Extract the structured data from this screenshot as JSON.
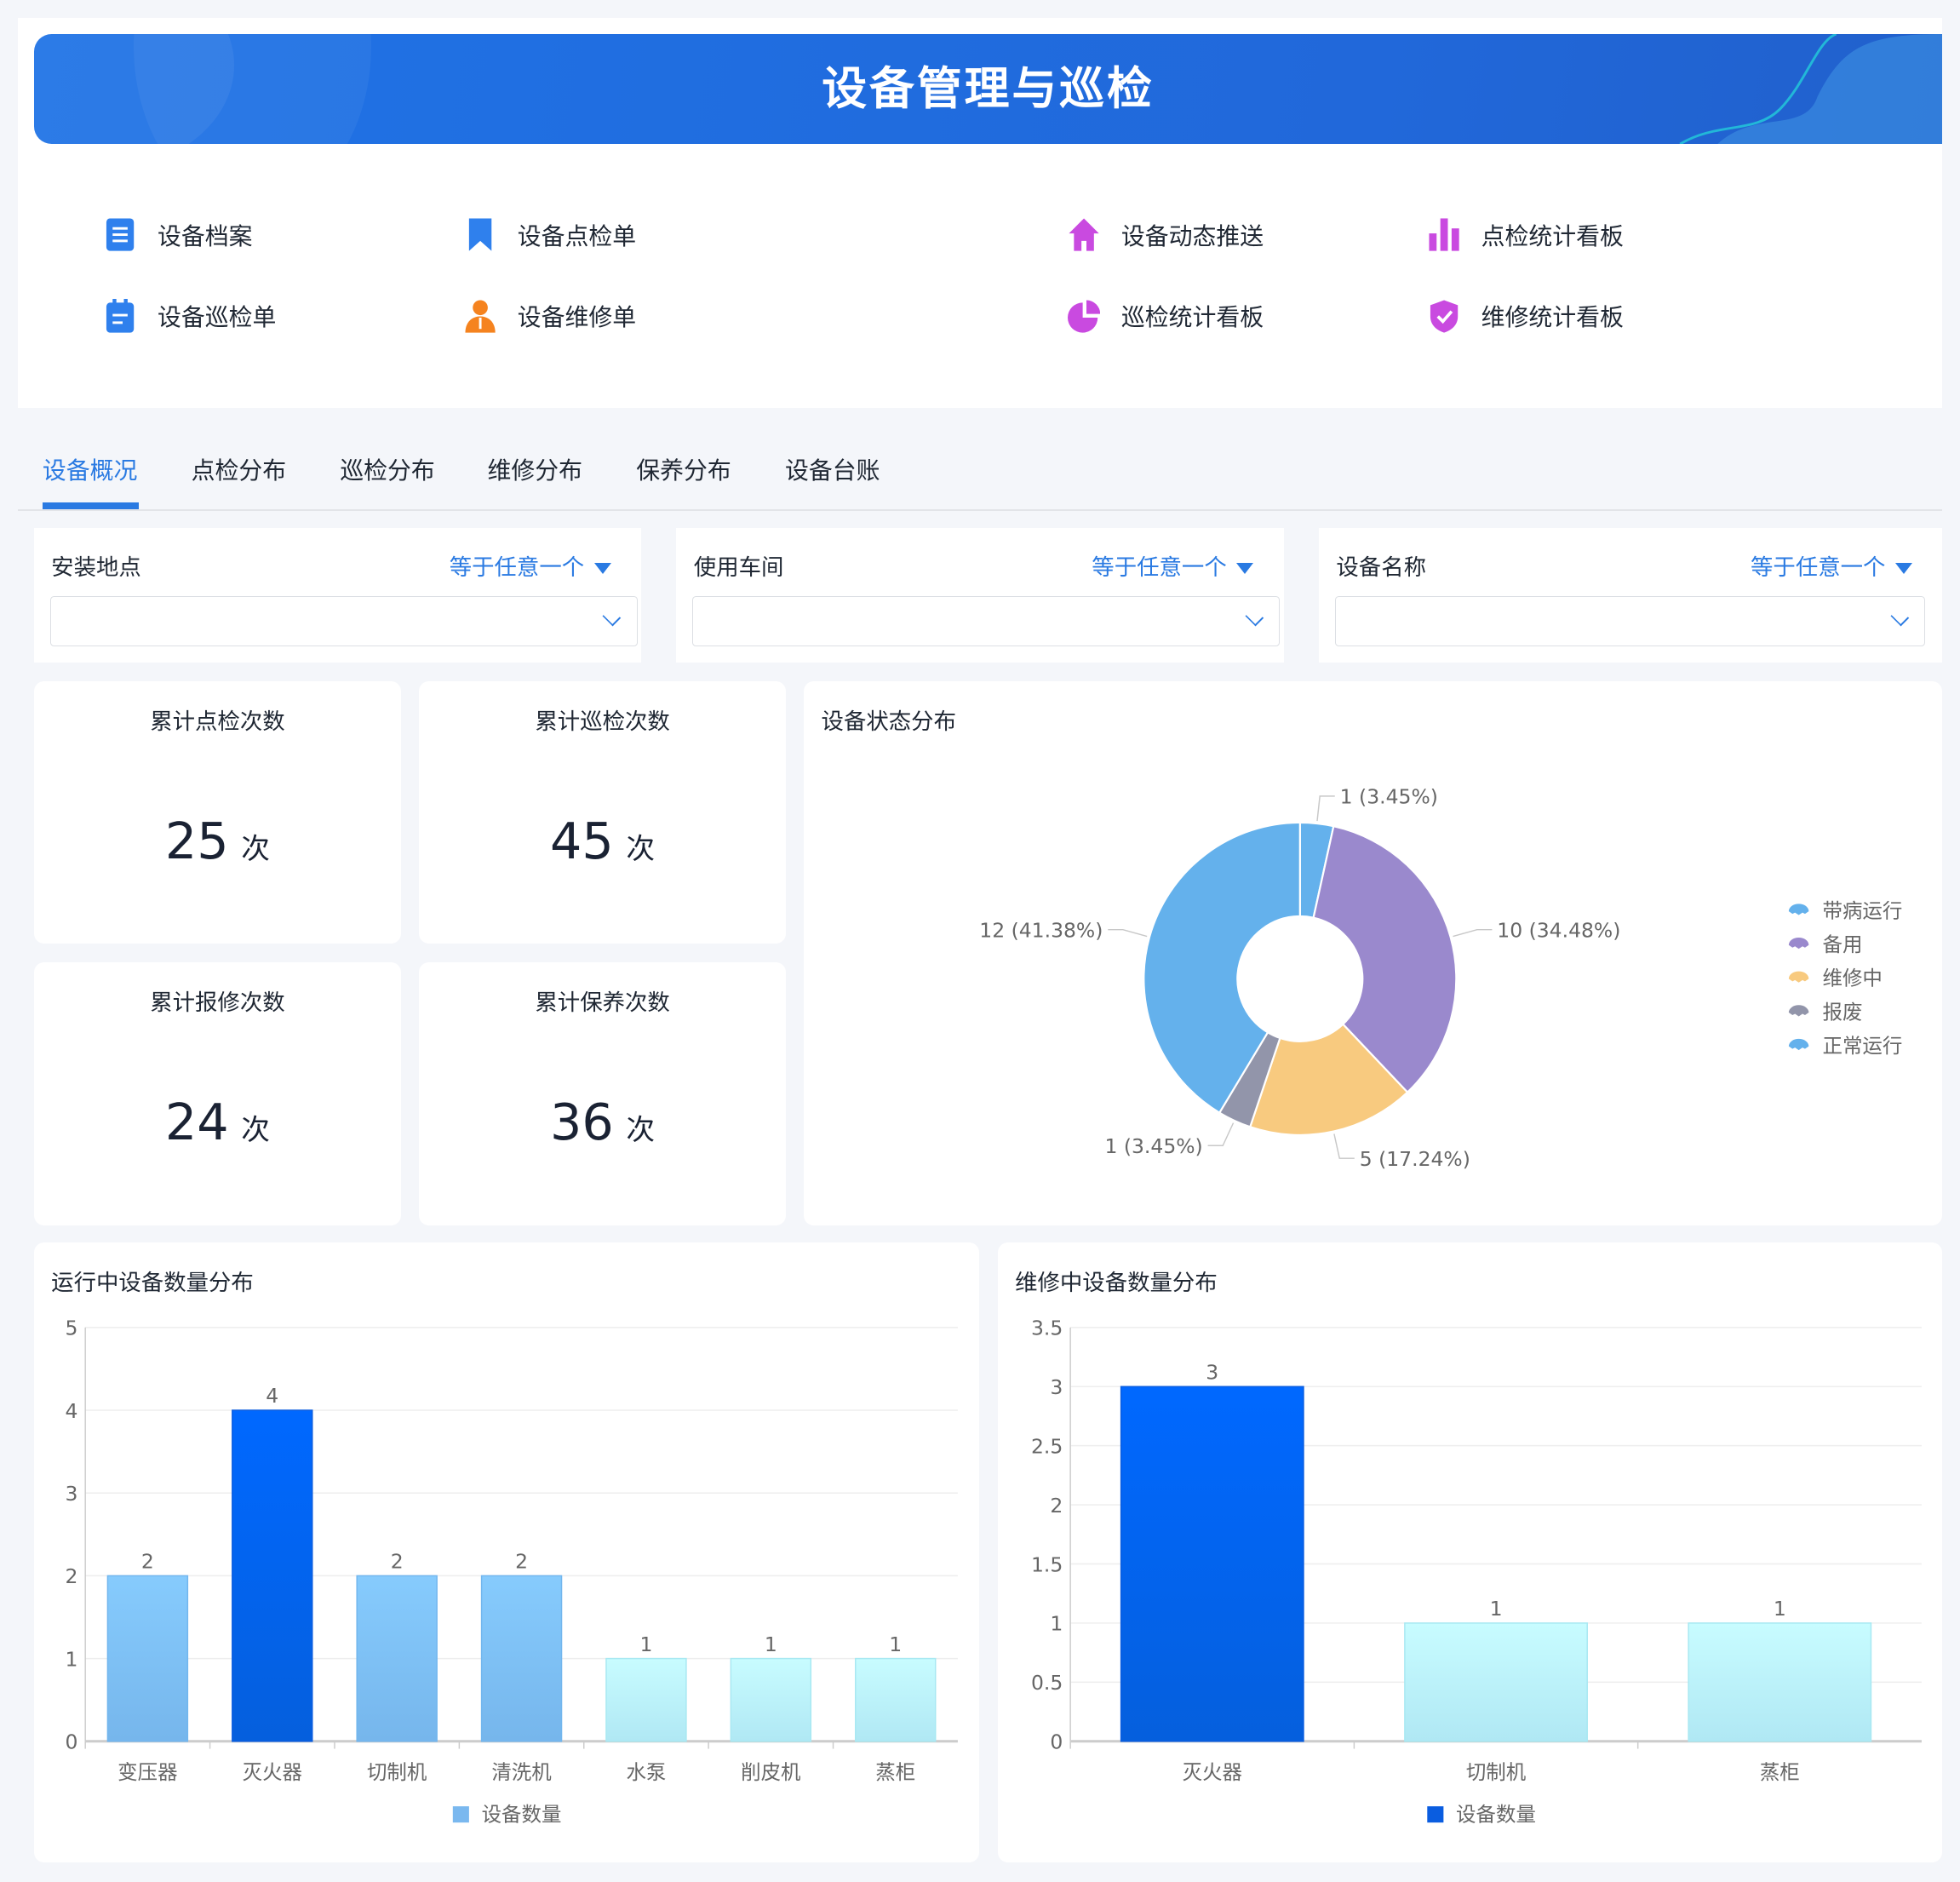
{
  "header": {
    "title": "设备管理与巡检"
  },
  "nav": [
    {
      "label": "设备档案",
      "icon": "document-icon",
      "color": "#2f80ed"
    },
    {
      "label": "设备点检单",
      "icon": "bookmark-icon",
      "color": "#2f80ed"
    },
    {
      "label": "设备动态推送",
      "icon": "home-icon",
      "color": "#c94ae0"
    },
    {
      "label": "点检统计看板",
      "icon": "bar-chart-icon",
      "color": "#c94ae0"
    },
    {
      "label": "设备巡检单",
      "icon": "clipboard-icon",
      "color": "#2f80ed"
    },
    {
      "label": "设备维修单",
      "icon": "user-icon",
      "color": "#f5831f"
    },
    {
      "label": "巡检统计看板",
      "icon": "pie-chart-icon",
      "color": "#c94ae0"
    },
    {
      "label": "维修统计看板",
      "icon": "shield-check-icon",
      "color": "#c94ae0"
    }
  ],
  "tabs": [
    {
      "label": "设备概况",
      "active": true
    },
    {
      "label": "点检分布"
    },
    {
      "label": "巡检分布"
    },
    {
      "label": "维修分布"
    },
    {
      "label": "保养分布"
    },
    {
      "label": "设备台账"
    }
  ],
  "filters": [
    {
      "label": "安装地点",
      "operator": "等于任意一个",
      "value": ""
    },
    {
      "label": "使用车间",
      "operator": "等于任意一个",
      "value": ""
    },
    {
      "label": "设备名称",
      "operator": "等于任意一个",
      "value": ""
    }
  ],
  "kpis": [
    {
      "title": "累计点检次数",
      "value": "25",
      "unit": "次"
    },
    {
      "title": "累计巡检次数",
      "value": "45",
      "unit": "次"
    },
    {
      "title": "累计报修次数",
      "value": "24",
      "unit": "次"
    },
    {
      "title": "累计保养次数",
      "value": "36",
      "unit": "次"
    }
  ],
  "accent": "#2a7ae2",
  "chart_data": [
    {
      "type": "pie",
      "title": "设备状态分布",
      "donut": true,
      "legend": "right",
      "slices": [
        {
          "name": "带病运行",
          "value": 1,
          "label": "1 (3.45%)",
          "color": "#64b1ec"
        },
        {
          "name": "备用",
          "value": 10,
          "label": "10 (34.48%)",
          "color": "#9a89cd"
        },
        {
          "name": "维修中",
          "value": 5,
          "label": "5 (17.24%)",
          "color": "#f8ca7f"
        },
        {
          "name": "报废",
          "value": 1,
          "label": "1 (3.45%)",
          "color": "#9295aa"
        },
        {
          "name": "正常运行",
          "value": 12,
          "label": "12 (41.38%)",
          "color": "#64b1ec"
        }
      ]
    },
    {
      "type": "bar",
      "title": "运行中设备数量分布",
      "categories": [
        "变压器",
        "灭火器",
        "切制机",
        "清洗机",
        "水泵",
        "削皮机",
        "蒸柜"
      ],
      "series": [
        {
          "name": "设备数量",
          "values": [
            2,
            4,
            2,
            2,
            1,
            1,
            1
          ],
          "color": "#7ab8ef"
        }
      ],
      "yticks": [
        "0",
        "1",
        "2",
        "3",
        "4",
        "5"
      ],
      "ylim": [
        0,
        5
      ],
      "grid": true,
      "legend": "bottom"
    },
    {
      "type": "bar",
      "title": "维修中设备数量分布",
      "categories": [
        "灭火器",
        "切制机",
        "蒸柜"
      ],
      "series": [
        {
          "name": "设备数量",
          "values": [
            3,
            1,
            1
          ],
          "color": "#0a5de0"
        }
      ],
      "yticks": [
        "0",
        "0.5",
        "1",
        "1.5",
        "2",
        "2.5",
        "3",
        "3.5"
      ],
      "ylim": [
        0,
        3.5
      ],
      "grid": true,
      "legend": "bottom"
    }
  ]
}
